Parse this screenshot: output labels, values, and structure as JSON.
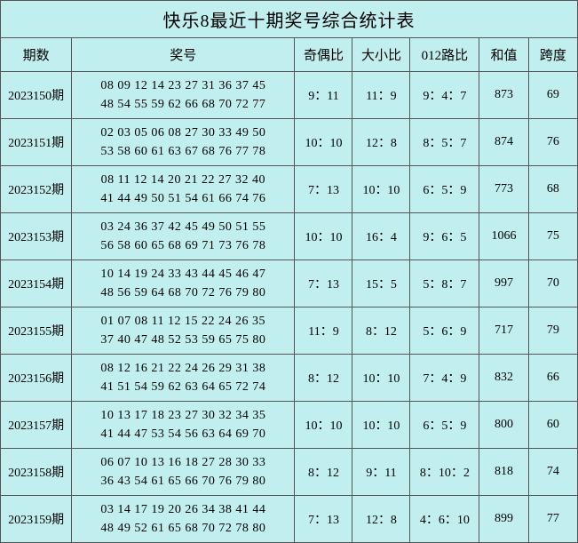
{
  "title": "快乐8最近十期奖号综合统计表",
  "background_color": "#c1eeee",
  "border_color": "#555555",
  "text_color": "#000000",
  "title_fontsize": 20,
  "header_fontsize": 15,
  "data_fontsize": 14,
  "headers": {
    "period": "期数",
    "numbers": "奖号",
    "odd_even": "奇偶比",
    "big_small": "大小比",
    "route_012": "012路比",
    "sum": "和值",
    "span": "跨度"
  },
  "rows": [
    {
      "period": "2023150期",
      "numbers_line1": "08 09 12 14 23 27 31 36 37 45",
      "numbers_line2": "48 54 55 59 62 66 68 70 72 77",
      "odd_even": "9：11",
      "big_small": "11：9",
      "route_012": "9：4：7",
      "sum": "873",
      "span": "69"
    },
    {
      "period": "2023151期",
      "numbers_line1": "02 03 05 06 08 27 30 33 49 50",
      "numbers_line2": "53 58 60 61 63 67 68 76 77 78",
      "odd_even": "10：10",
      "big_small": "12：8",
      "route_012": "8：5：7",
      "sum": "874",
      "span": "76"
    },
    {
      "period": "2023152期",
      "numbers_line1": "08 11 12 14 20 21 22 27 32 40",
      "numbers_line2": "41 44 49 50 51 54 61 66 74 76",
      "odd_even": "7：13",
      "big_small": "10：10",
      "route_012": "6：5：9",
      "sum": "773",
      "span": "68"
    },
    {
      "period": "2023153期",
      "numbers_line1": "03 24 36 37 42 45 49 50 51 55",
      "numbers_line2": "56 58 60 65 68 69 71 73 76 78",
      "odd_even": "10：10",
      "big_small": "16：4",
      "route_012": "9：6：5",
      "sum": "1066",
      "span": "75"
    },
    {
      "period": "2023154期",
      "numbers_line1": "10 14 19 24 33 43 44 45 46 47",
      "numbers_line2": "48 56 59 64 68 70 72 76 79 80",
      "odd_even": "7：13",
      "big_small": "15：5",
      "route_012": "5：8：7",
      "sum": "997",
      "span": "70"
    },
    {
      "period": "2023155期",
      "numbers_line1": "01 07 08 11 12 15 22 24 26 35",
      "numbers_line2": "37 40 47 48 52 53 59 65 75 80",
      "odd_even": "11：9",
      "big_small": "8：12",
      "route_012": "5：6：9",
      "sum": "717",
      "span": "79"
    },
    {
      "period": "2023156期",
      "numbers_line1": "08 12 16 21 22 24 26 29 31 38",
      "numbers_line2": "41 51 54 59 62 63 64 65 72 74",
      "odd_even": "8：12",
      "big_small": "10：10",
      "route_012": "7：4：9",
      "sum": "832",
      "span": "66"
    },
    {
      "period": "2023157期",
      "numbers_line1": "10 13 17 18 23 27 30 32 34 35",
      "numbers_line2": "41 44 47 53 54 56 63 64 69 70",
      "odd_even": "10：10",
      "big_small": "10：10",
      "route_012": "6：5：9",
      "sum": "800",
      "span": "60"
    },
    {
      "period": "2023158期",
      "numbers_line1": "06 07 10 13 16 18 27 28 30 33",
      "numbers_line2": "36 43 54 61 65 66 70 76 79 80",
      "odd_even": "8：12",
      "big_small": "9：11",
      "route_012": "8：10：2",
      "sum": "818",
      "span": "74"
    },
    {
      "period": "2023159期",
      "numbers_line1": "03 14 17 19 20 26 34 38 41 44",
      "numbers_line2": "48 49 52 61 65 68 70 72 78 80",
      "odd_even": "7：13",
      "big_small": "12：8",
      "route_012": "4：6：10",
      "sum": "899",
      "span": "77"
    }
  ]
}
